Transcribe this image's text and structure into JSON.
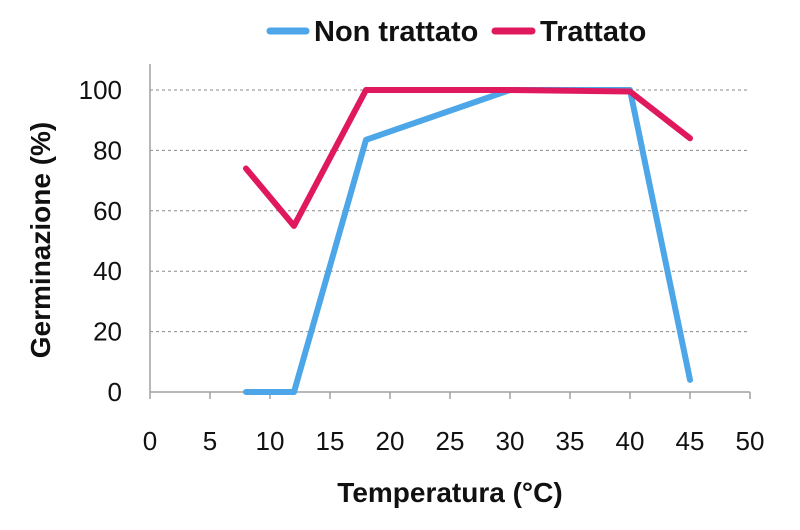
{
  "chart_data": {
    "type": "line",
    "xlabel": "Temperatura (°C)",
    "ylabel": "Germinazione (%)",
    "xlim": [
      0,
      50
    ],
    "ylim": [
      0,
      100
    ],
    "x_ticks": [
      0,
      5,
      10,
      15,
      20,
      25,
      30,
      35,
      40,
      45,
      50
    ],
    "y_ticks": [
      0,
      20,
      40,
      60,
      80,
      100
    ],
    "grid": "horizontal dashed",
    "legend_position": "top",
    "series": [
      {
        "name": "Non trattato",
        "color": "#4da6e8",
        "x": [
          8,
          12,
          18,
          30,
          40,
          45
        ],
        "y": [
          0,
          0,
          83.5,
          100,
          100,
          4
        ]
      },
      {
        "name": "Trattato",
        "color": "#e0195f",
        "x": [
          8,
          12,
          18,
          30,
          40,
          45
        ],
        "y": [
          74,
          55,
          100,
          100,
          99.5,
          84
        ]
      }
    ]
  }
}
